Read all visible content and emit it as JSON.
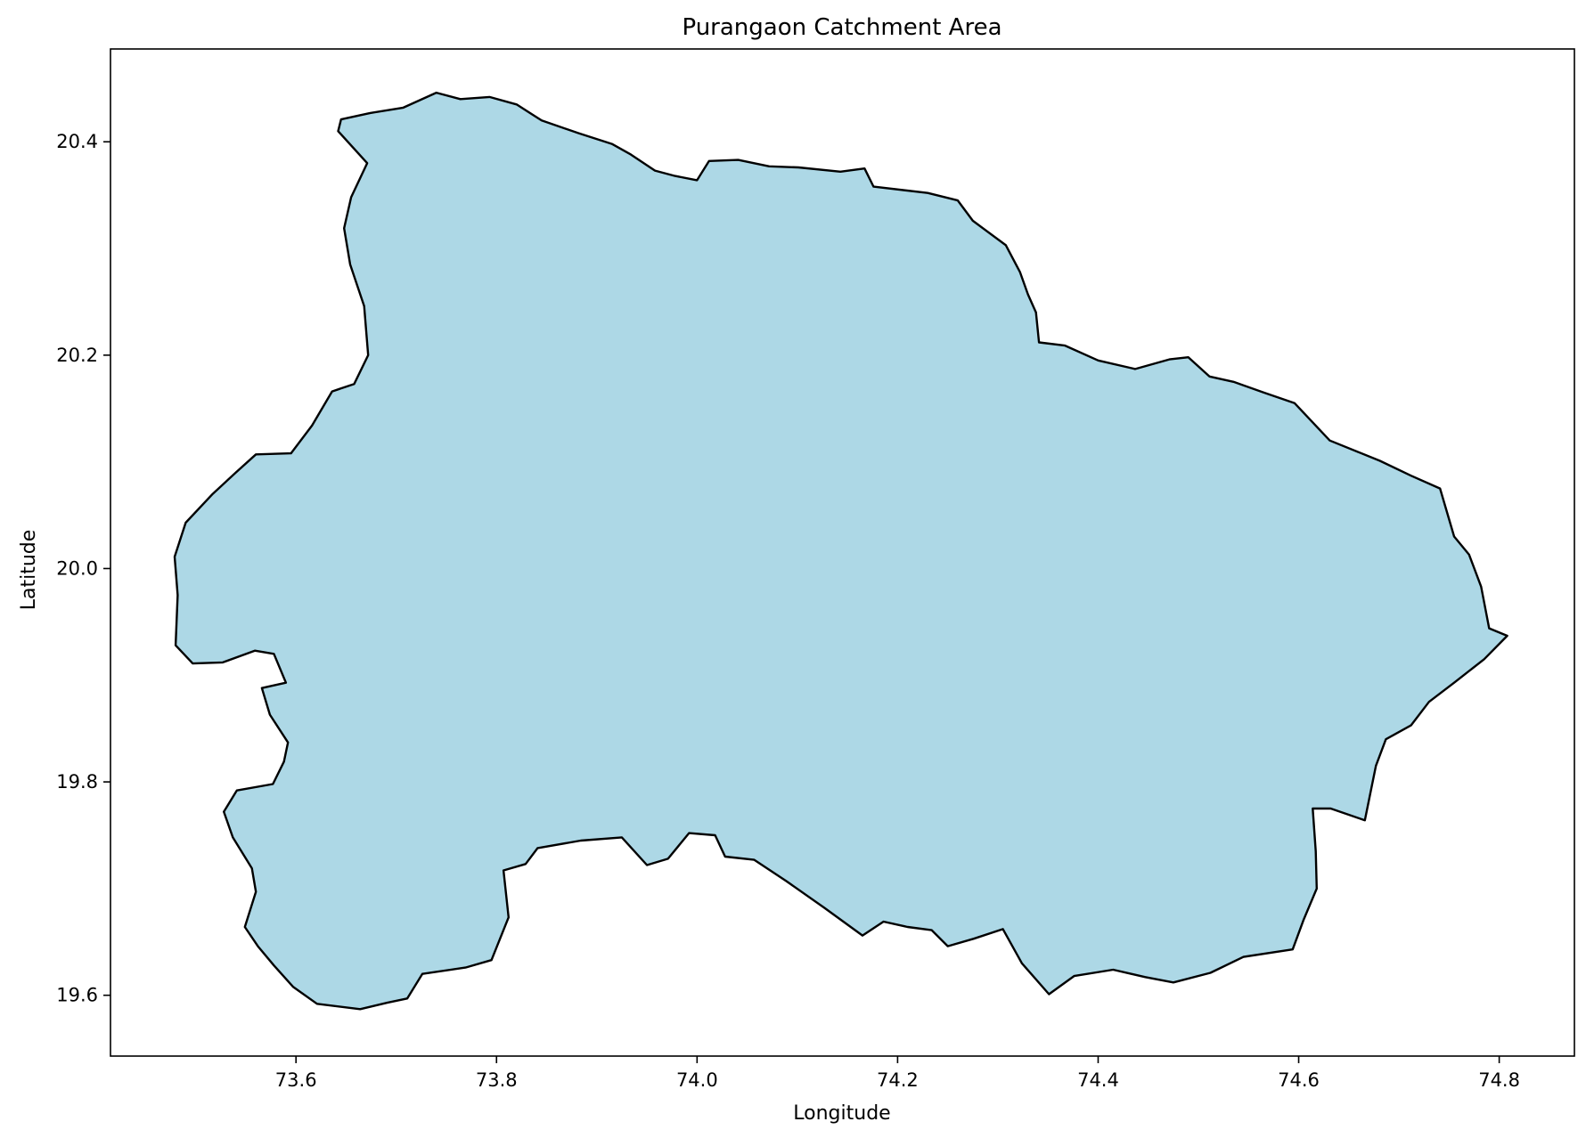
{
  "title": "Purangaon Catchment Area",
  "xlabel": "Longitude",
  "ylabel": "Latitude",
  "xlim": [
    73.415,
    74.875
  ],
  "ylim": [
    19.543,
    20.487
  ],
  "x_ticks": [
    73.6,
    73.8,
    74.0,
    74.2,
    74.4,
    74.6,
    74.8
  ],
  "x_tick_labels": [
    "73.6",
    "73.8",
    "74.0",
    "74.2",
    "74.4",
    "74.6",
    "74.8"
  ],
  "y_ticks": [
    19.6,
    19.8,
    20.0,
    20.2,
    20.4
  ],
  "y_tick_labels": [
    "19.6",
    "19.8",
    "20.0",
    "20.2",
    "20.4"
  ],
  "colors": {
    "fill": "#add8e6",
    "edge": "#000000"
  },
  "catchment_boundary": [
    [
      73.645,
      20.421
    ],
    [
      73.674,
      20.427
    ],
    [
      73.707,
      20.432
    ],
    [
      73.74,
      20.446
    ],
    [
      73.764,
      20.44
    ],
    [
      73.793,
      20.442
    ],
    [
      73.82,
      20.435
    ],
    [
      73.845,
      20.42
    ],
    [
      73.882,
      20.408
    ],
    [
      73.915,
      20.398
    ],
    [
      73.934,
      20.388
    ],
    [
      73.958,
      20.373
    ],
    [
      73.978,
      20.368
    ],
    [
      74.0,
      20.364
    ],
    [
      74.012,
      20.382
    ],
    [
      74.041,
      20.383
    ],
    [
      74.072,
      20.377
    ],
    [
      74.101,
      20.376
    ],
    [
      74.143,
      20.372
    ],
    [
      74.167,
      20.375
    ],
    [
      74.176,
      20.358
    ],
    [
      74.23,
      20.352
    ],
    [
      74.26,
      20.345
    ],
    [
      74.275,
      20.326
    ],
    [
      74.308,
      20.303
    ],
    [
      74.322,
      20.278
    ],
    [
      74.33,
      20.257
    ],
    [
      74.338,
      20.24
    ],
    [
      74.341,
      20.212
    ],
    [
      74.367,
      20.209
    ],
    [
      74.4,
      20.195
    ],
    [
      74.437,
      20.187
    ],
    [
      74.471,
      20.196
    ],
    [
      74.49,
      20.198
    ],
    [
      74.511,
      20.18
    ],
    [
      74.535,
      20.175
    ],
    [
      74.565,
      20.165
    ],
    [
      74.596,
      20.155
    ],
    [
      74.631,
      20.12
    ],
    [
      74.681,
      20.101
    ],
    [
      74.712,
      20.087
    ],
    [
      74.741,
      20.075
    ],
    [
      74.755,
      20.03
    ],
    [
      74.77,
      20.013
    ],
    [
      74.782,
      19.983
    ],
    [
      74.79,
      19.944
    ],
    [
      74.808,
      19.937
    ],
    [
      74.785,
      19.915
    ],
    [
      74.755,
      19.893
    ],
    [
      74.73,
      19.875
    ],
    [
      74.712,
      19.853
    ],
    [
      74.687,
      19.84
    ],
    [
      74.677,
      19.815
    ],
    [
      74.666,
      19.764
    ],
    [
      74.632,
      19.775
    ],
    [
      74.614,
      19.775
    ],
    [
      74.617,
      19.735
    ],
    [
      74.618,
      19.7
    ],
    [
      74.605,
      19.671
    ],
    [
      74.594,
      19.643
    ],
    [
      74.545,
      19.636
    ],
    [
      74.512,
      19.621
    ],
    [
      74.475,
      19.612
    ],
    [
      74.447,
      19.617
    ],
    [
      74.415,
      19.624
    ],
    [
      74.376,
      19.618
    ],
    [
      74.351,
      19.601
    ],
    [
      74.324,
      19.63
    ],
    [
      74.305,
      19.662
    ],
    [
      74.276,
      19.653
    ],
    [
      74.25,
      19.646
    ],
    [
      74.234,
      19.661
    ],
    [
      74.21,
      19.664
    ],
    [
      74.186,
      19.669
    ],
    [
      74.165,
      19.656
    ],
    [
      74.127,
      19.682
    ],
    [
      74.089,
      19.707
    ],
    [
      74.057,
      19.727
    ],
    [
      74.028,
      19.73
    ],
    [
      74.018,
      19.75
    ],
    [
      73.992,
      19.752
    ],
    [
      73.971,
      19.728
    ],
    [
      73.95,
      19.722
    ],
    [
      73.925,
      19.748
    ],
    [
      73.884,
      19.745
    ],
    [
      73.841,
      19.738
    ],
    [
      73.829,
      19.723
    ],
    [
      73.807,
      19.717
    ],
    [
      73.812,
      19.673
    ],
    [
      73.795,
      19.633
    ],
    [
      73.769,
      19.626
    ],
    [
      73.726,
      19.62
    ],
    [
      73.711,
      19.597
    ],
    [
      73.691,
      19.593
    ],
    [
      73.664,
      19.587
    ],
    [
      73.621,
      19.592
    ],
    [
      73.597,
      19.608
    ],
    [
      73.578,
      19.628
    ],
    [
      73.562,
      19.646
    ],
    [
      73.549,
      19.664
    ],
    [
      73.56,
      19.697
    ],
    [
      73.556,
      19.719
    ],
    [
      73.537,
      19.748
    ],
    [
      73.528,
      19.772
    ],
    [
      73.541,
      19.792
    ],
    [
      73.577,
      19.798
    ],
    [
      73.588,
      19.819
    ],
    [
      73.592,
      19.837
    ],
    [
      73.574,
      19.863
    ],
    [
      73.566,
      19.888
    ],
    [
      73.59,
      19.893
    ],
    [
      73.578,
      19.92
    ],
    [
      73.559,
      19.923
    ],
    [
      73.527,
      19.912
    ],
    [
      73.497,
      19.911
    ],
    [
      73.48,
      19.928
    ],
    [
      73.482,
      19.975
    ],
    [
      73.479,
      20.011
    ],
    [
      73.49,
      20.043
    ],
    [
      73.517,
      20.07
    ],
    [
      73.54,
      20.09
    ],
    [
      73.56,
      20.107
    ],
    [
      73.595,
      20.108
    ],
    [
      73.616,
      20.134
    ],
    [
      73.636,
      20.166
    ],
    [
      73.658,
      20.173
    ],
    [
      73.672,
      20.2
    ],
    [
      73.668,
      20.246
    ],
    [
      73.654,
      20.285
    ],
    [
      73.648,
      20.319
    ],
    [
      73.655,
      20.348
    ],
    [
      73.671,
      20.38
    ],
    [
      73.642,
      20.41
    ],
    [
      73.645,
      20.421
    ]
  ]
}
